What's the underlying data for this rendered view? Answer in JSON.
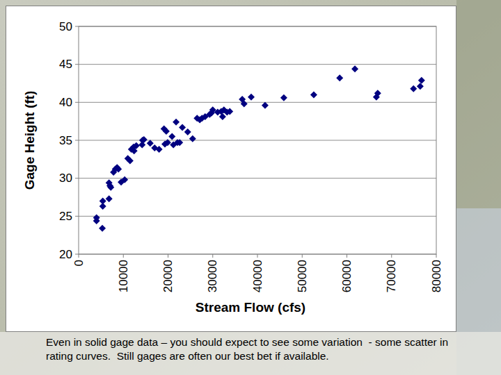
{
  "chart_data": {
    "type": "scatter",
    "x_label": "Stream Flow (cfs)",
    "y_label": "Gage Height (ft)",
    "annotations": [
      "Even in solid gage data – you should expect to see some variation  - some scatter in rating curves.  Still gages are often our best bet if available."
    ],
    "x": [
      4000,
      4000,
      5300,
      5400,
      5400,
      6800,
      6800,
      7000,
      7200,
      7800,
      8200,
      8600,
      8900,
      9500,
      10300,
      11000,
      11500,
      11800,
      12300,
      12400,
      12900,
      14200,
      14300,
      14600,
      16000,
      17000,
      18000,
      19100,
      19300,
      19600,
      19900,
      20900,
      21200,
      21800,
      22100,
      22600,
      23200,
      24400,
      25500,
      26500,
      27100,
      27600,
      28300,
      29300,
      29700,
      30000,
      31100,
      31900,
      32200,
      32500,
      33200,
      33800,
      36600,
      37000,
      38600,
      41700,
      45900,
      52600,
      58400,
      61800,
      66600,
      66900,
      74900,
      76400,
      76700
    ],
    "values": [
      24.8,
      24.4,
      23.4,
      26.3,
      27.0,
      27.3,
      29.4,
      29.0,
      28.8,
      30.8,
      31.2,
      31.4,
      31.2,
      29.5,
      29.8,
      32.6,
      32.3,
      33.8,
      34.1,
      33.6,
      34.3,
      34.4,
      35.0,
      35.1,
      34.6,
      34.0,
      33.8,
      36.5,
      34.5,
      36.2,
      34.7,
      35.5,
      34.4,
      37.4,
      34.7,
      34.7,
      36.7,
      36.1,
      35.2,
      37.9,
      37.7,
      37.9,
      38.1,
      38.4,
      38.6,
      39.0,
      38.7,
      38.8,
      38.1,
      39.0,
      38.7,
      38.8,
      40.4,
      39.8,
      40.7,
      39.6,
      40.6,
      41.0,
      43.2,
      44.4,
      40.7,
      41.2,
      41.8,
      42.1,
      42.9
    ],
    "color": "#000080",
    "marker": "diamond",
    "xlim": [
      0,
      80000
    ],
    "xticks": [
      0,
      10000,
      20000,
      30000,
      40000,
      50000,
      60000,
      70000,
      80000
    ],
    "ylim": [
      20,
      50
    ],
    "yticks": [
      20,
      25,
      30,
      35,
      40,
      45,
      50
    ],
    "grid": true
  }
}
